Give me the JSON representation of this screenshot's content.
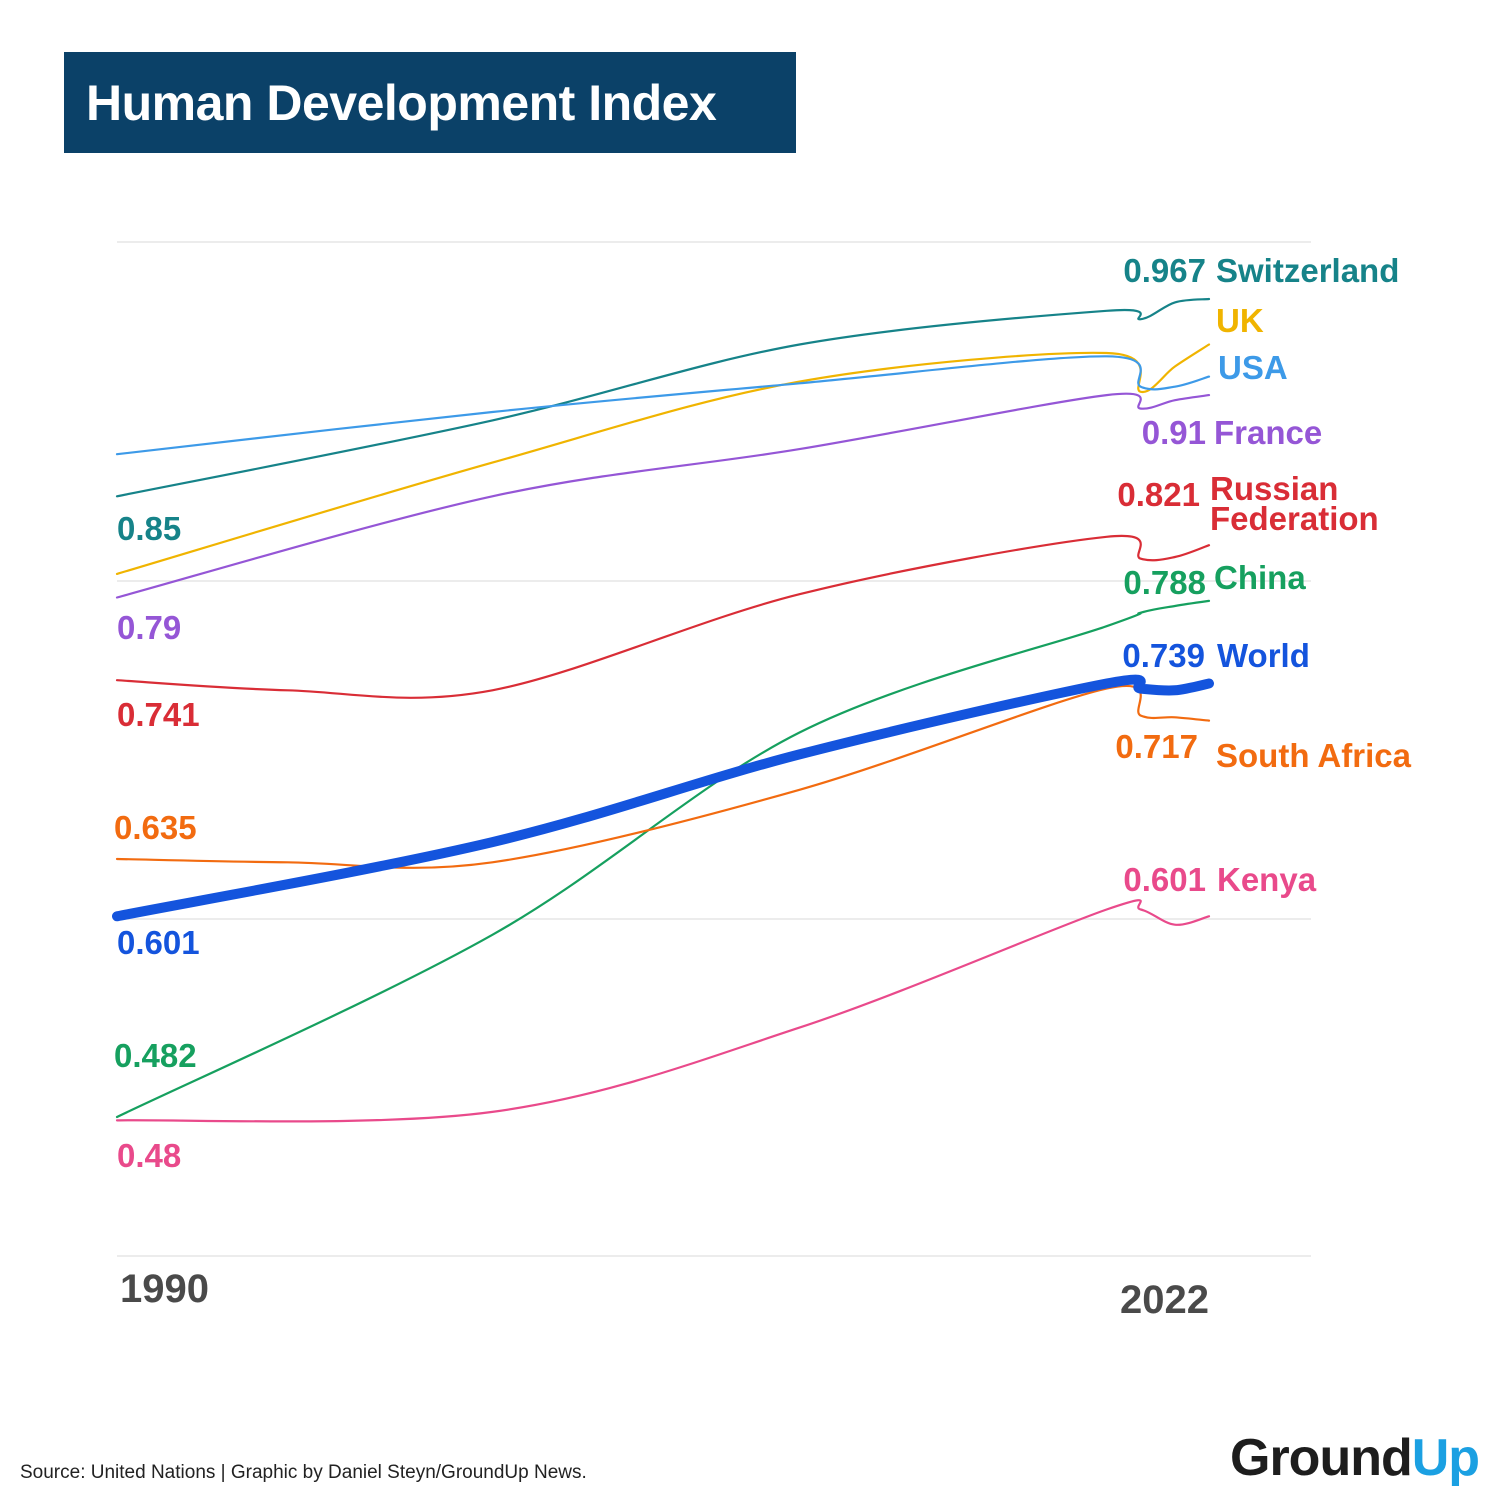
{
  "header": {
    "title": "Human Development Index"
  },
  "footer": {
    "source": "Source: United Nations | Graphic by Daniel Steyn/GroundUp News."
  },
  "logo": {
    "part1": "Ground",
    "part2": "Up"
  },
  "chart_data": {
    "type": "line",
    "title": "Human Development Index",
    "xlim": [
      1990,
      2022
    ],
    "ylim": [
      0.42,
      1.02
    ],
    "grid": true,
    "legend": "direct-labels",
    "x_tick_labels": [
      "1990",
      "2022"
    ],
    "series": [
      {
        "name": "Switzerland",
        "color": "#168389",
        "x": [
          1990,
          2001,
          2010,
          2019,
          2020,
          2021,
          2022
        ],
        "values": [
          0.85,
          0.895,
          0.94,
          0.96,
          0.955,
          0.965,
          0.967
        ],
        "start_label": "0.85",
        "end_label": "0.967"
      },
      {
        "name": "UK",
        "color": "#f0b400",
        "x": [
          1990,
          2001,
          2010,
          2019,
          2020,
          2021,
          2022
        ],
        "values": [
          0.804,
          0.87,
          0.918,
          0.935,
          0.912,
          0.927,
          0.94
        ],
        "start_label": "",
        "end_label": ""
      },
      {
        "name": "USA",
        "color": "#3d9ae8",
        "x": [
          1990,
          2001,
          2010,
          2019,
          2020,
          2021,
          2022
        ],
        "values": [
          0.875,
          0.9,
          0.917,
          0.933,
          0.915,
          0.915,
          0.921
        ],
        "start_label": "",
        "end_label": ""
      },
      {
        "name": "France",
        "color": "#9556d6",
        "x": [
          1990,
          2001,
          2010,
          2019,
          2020,
          2021,
          2022
        ],
        "values": [
          0.79,
          0.85,
          0.878,
          0.91,
          0.902,
          0.907,
          0.91
        ],
        "start_label": "0.79",
        "end_label": "0.91"
      },
      {
        "name": "Russian Federation",
        "color": "#d92d36",
        "x": [
          1990,
          1995,
          2001,
          2010,
          2019,
          2020,
          2021,
          2022
        ],
        "values": [
          0.741,
          0.735,
          0.735,
          0.792,
          0.826,
          0.813,
          0.814,
          0.821
        ],
        "start_label": "0.741",
        "end_label": "0.821",
        "display_lines": [
          "Russian",
          "Federation"
        ]
      },
      {
        "name": "China",
        "color": "#16a05f",
        "x": [
          1990,
          2001,
          2010,
          2019,
          2020,
          2021,
          2022
        ],
        "values": [
          0.482,
          0.59,
          0.71,
          0.773,
          0.781,
          0.785,
          0.788
        ],
        "start_label": "0.482",
        "end_label": "0.788"
      },
      {
        "name": "South Africa",
        "color": "#f26b10",
        "x": [
          1990,
          1995,
          2001,
          2010,
          2019,
          2020,
          2021,
          2022
        ],
        "values": [
          0.635,
          0.633,
          0.633,
          0.676,
          0.736,
          0.72,
          0.719,
          0.717
        ],
        "start_label": "0.635",
        "end_label": "0.717"
      },
      {
        "name": "World",
        "color": "#1454dd",
        "x": [
          1990,
          2001,
          2010,
          2019,
          2020,
          2021,
          2022
        ],
        "values": [
          0.601,
          0.645,
          0.697,
          0.739,
          0.736,
          0.735,
          0.739
        ],
        "start_label": "0.601",
        "end_label": "0.739",
        "emphasis": true
      },
      {
        "name": "Kenya",
        "color": "#e94a8b",
        "x": [
          1990,
          2001,
          2010,
          2019,
          2020,
          2021,
          2022
        ],
        "values": [
          0.48,
          0.485,
          0.535,
          0.605,
          0.605,
          0.596,
          0.601
        ],
        "start_label": "0.48",
        "end_label": "0.601"
      }
    ]
  }
}
